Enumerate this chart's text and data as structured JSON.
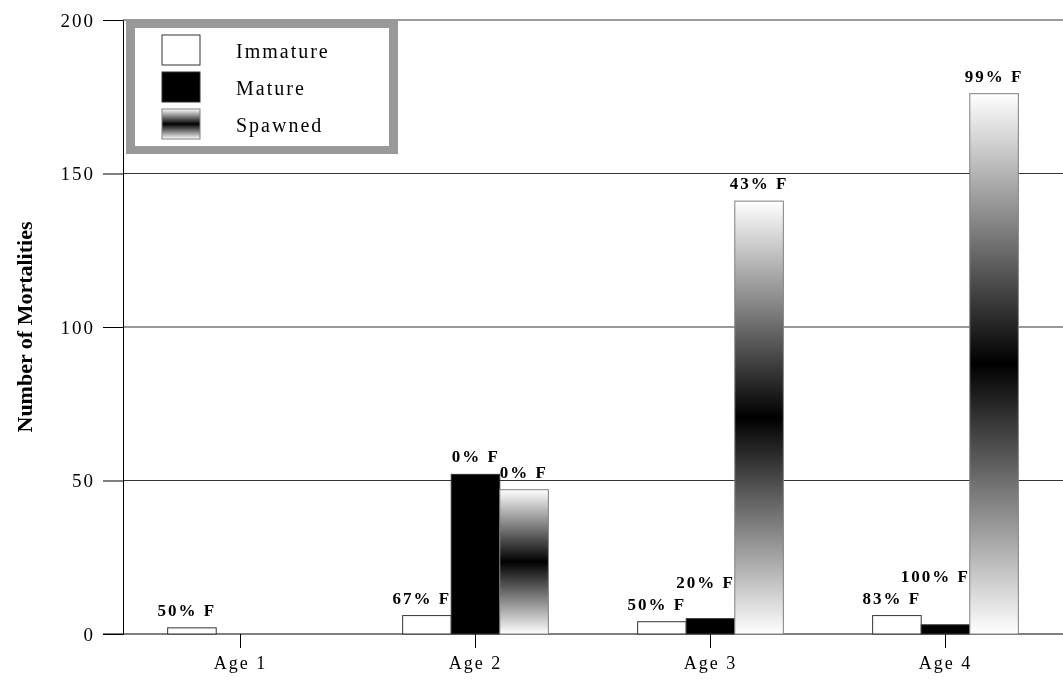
{
  "chart_data": {
    "type": "bar",
    "ylabel": "Number of Mortalities",
    "categories": [
      "Age 1",
      "Age 2",
      "Age 3",
      "Age 4"
    ],
    "series": [
      {
        "name": "Immature",
        "color": "#ffffff",
        "values": [
          2,
          6,
          4,
          6
        ]
      },
      {
        "name": "Mature",
        "color": "#000000",
        "values": [
          0,
          52,
          5,
          3
        ]
      },
      {
        "name": "Spawned",
        "color": "#808080",
        "values": [
          0,
          47,
          141,
          176
        ]
      }
    ],
    "annotations": [
      "50% F",
      "67% F",
      "0% F",
      "0% F",
      "50% F",
      "20% F",
      "43% F",
      "83% F",
      "100% F",
      "99% F"
    ],
    "ylim": [
      0,
      200
    ],
    "yticks": [
      0,
      50,
      100,
      150,
      200
    ],
    "grid": "y",
    "legend": "top left"
  }
}
